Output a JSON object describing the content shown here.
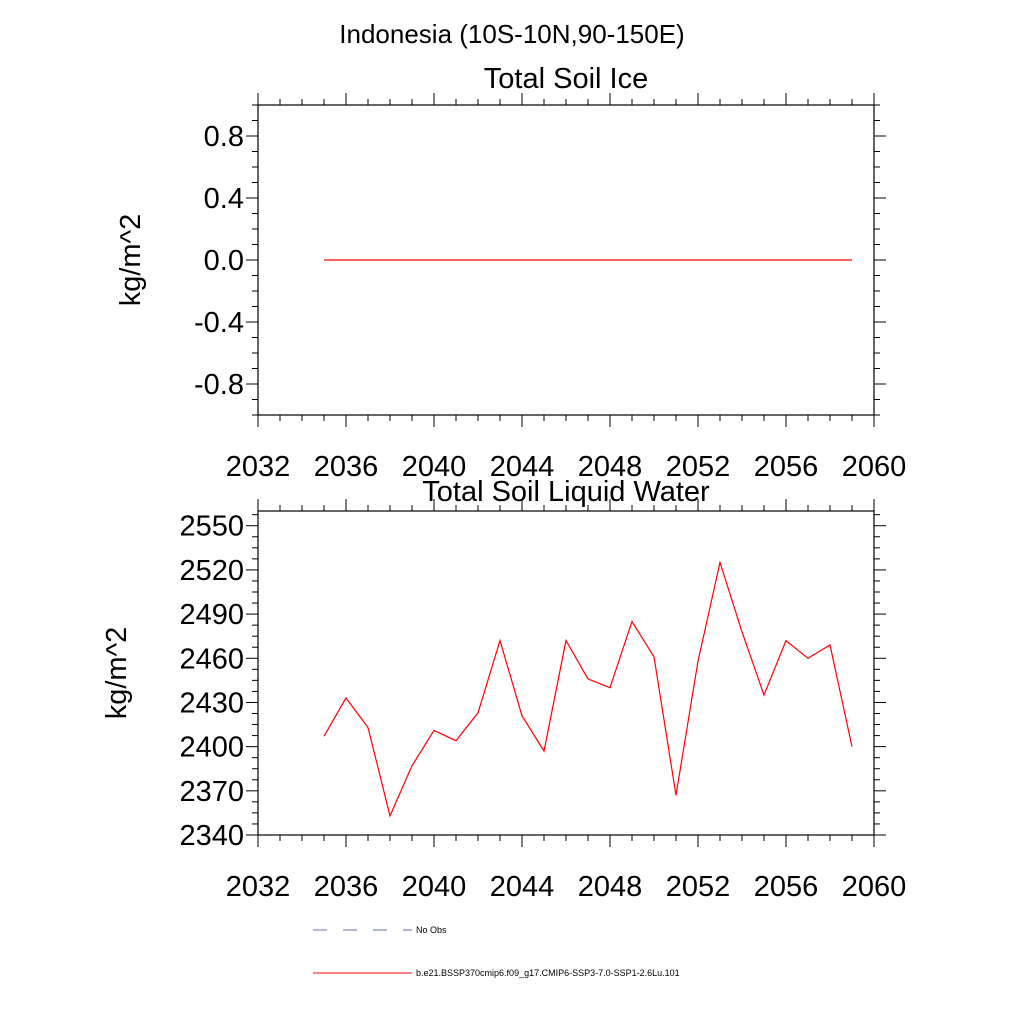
{
  "figure": {
    "title": "Indonesia (10S-10N,90-150E)"
  },
  "chart_data": [
    {
      "type": "line",
      "title": "Total Soil Ice",
      "xlabel": "",
      "ylabel": "kg/m^2",
      "xlim": [
        2032,
        2060
      ],
      "ylim": [
        -1.0,
        1.0
      ],
      "xticks": [
        2032,
        2036,
        2040,
        2044,
        2048,
        2052,
        2056,
        2060
      ],
      "xtick_labels": [
        "2032",
        "2036",
        "2040",
        "2044",
        "2048",
        "2052",
        "2056",
        "2060"
      ],
      "yticks": [
        -0.8,
        -0.4,
        0.0,
        0.4,
        0.8
      ],
      "ytick_labels": [
        "-0.8",
        "-0.4",
        "0.0",
        "0.4",
        "0.8"
      ],
      "grid": false,
      "series": [
        {
          "color": "#ff0000",
          "x": [
            2035,
            2036,
            2037,
            2038,
            2039,
            2040,
            2041,
            2042,
            2043,
            2044,
            2045,
            2046,
            2047,
            2048,
            2049,
            2050,
            2051,
            2052,
            2053,
            2054,
            2055,
            2056,
            2057,
            2058,
            2059
          ],
          "values": [
            0,
            0,
            0,
            0,
            0,
            0,
            0,
            0,
            0,
            0,
            0,
            0,
            0,
            0,
            0,
            0,
            0,
            0,
            0,
            0,
            0,
            0,
            0,
            0,
            0
          ]
        }
      ]
    },
    {
      "type": "line",
      "title": "Total Soil Liquid Water",
      "xlabel": "",
      "ylabel": "kg/m^2",
      "xlim": [
        2032,
        2060
      ],
      "ylim": [
        2340,
        2560
      ],
      "xticks": [
        2032,
        2036,
        2040,
        2044,
        2048,
        2052,
        2056,
        2060
      ],
      "xtick_labels": [
        "2032",
        "2036",
        "2040",
        "2044",
        "2048",
        "2052",
        "2056",
        "2060"
      ],
      "yticks": [
        2340,
        2370,
        2400,
        2430,
        2460,
        2490,
        2520,
        2550
      ],
      "ytick_labels": [
        "2340",
        "2370",
        "2400",
        "2430",
        "2460",
        "2490",
        "2520",
        "2550"
      ],
      "grid": false,
      "series": [
        {
          "color": "#ff0000",
          "x": [
            2035,
            2036,
            2037,
            2038,
            2039,
            2040,
            2041,
            2042,
            2043,
            2044,
            2045,
            2046,
            2047,
            2048,
            2049,
            2050,
            2051,
            2052,
            2053,
            2054,
            2055,
            2056,
            2057,
            2058,
            2059
          ],
          "values": [
            2407,
            2433,
            2413,
            2353,
            2387,
            2411,
            2404,
            2423,
            2472,
            2421,
            2397,
            2472,
            2446,
            2440,
            2485,
            2461,
            2367,
            2458,
            2525,
            2478,
            2435,
            2472,
            2460,
            2469,
            2400
          ]
        }
      ]
    }
  ],
  "legend": {
    "placement": "bottom",
    "items": [
      {
        "label": "No Obs",
        "color": "#6070b0",
        "dashed": true
      },
      {
        "label": "b.e21.BSSP370cmip6.f09_g17.CMIP6-SSP3-7.0-SSP1-2.6Lu.101",
        "color": "#ff0000",
        "dashed": false
      }
    ]
  }
}
